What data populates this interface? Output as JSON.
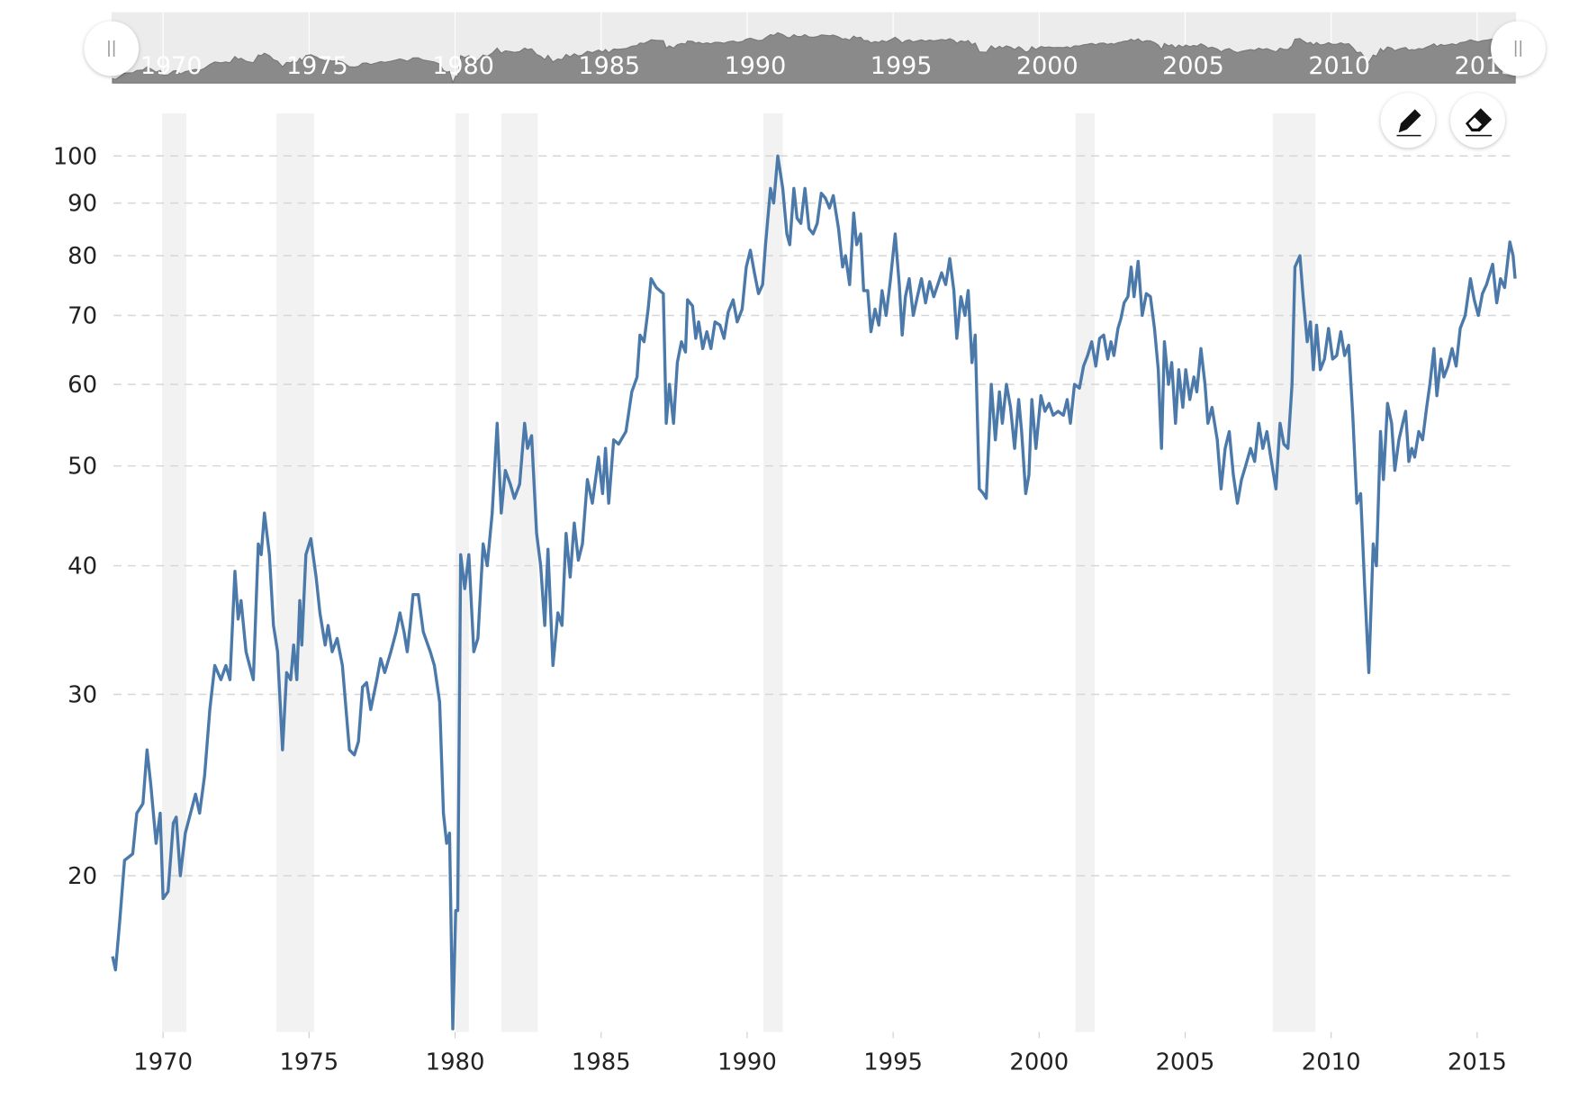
{
  "chart_data": {
    "type": "line",
    "log": true,
    "grid": true,
    "color": "#4a79aa",
    "xlim": [
      1968.3,
      2016.3
    ],
    "xticks": [
      1970,
      1975,
      1980,
      1985,
      1990,
      1995,
      2000,
      2005,
      2010,
      2015
    ],
    "ylim": [
      14.1,
      110
    ],
    "yticks": [
      20,
      30,
      40,
      50,
      60,
      70,
      80,
      90,
      100
    ],
    "recessions": [
      [
        1969.97,
        1970.8
      ],
      [
        1973.88,
        1975.17
      ],
      [
        1980.02,
        1980.47
      ],
      [
        1981.58,
        1982.83
      ],
      [
        1990.56,
        1991.22
      ],
      [
        2001.24,
        2001.9
      ],
      [
        2008.0,
        2009.46
      ]
    ],
    "x": [
      1968.27,
      1968.37,
      1968.51,
      1968.68,
      1968.96,
      1969.1,
      1969.31,
      1969.45,
      1969.58,
      1969.76,
      1969.9,
      1970,
      1970.17,
      1970.35,
      1970.45,
      1970.59,
      1970.76,
      1970.94,
      1971.11,
      1971.25,
      1971.42,
      1971.6,
      1971.77,
      1971.98,
      1972.15,
      1972.29,
      1972.46,
      1972.57,
      1972.67,
      1972.84,
      1973.09,
      1973.26,
      1973.36,
      1973.47,
      1973.64,
      1973.78,
      1973.92,
      1974.09,
      1974.23,
      1974.37,
      1974.47,
      1974.58,
      1974.68,
      1974.75,
      1974.89,
      1975.06,
      1975.24,
      1975.37,
      1975.55,
      1975.65,
      1975.79,
      1975.96,
      1976.14,
      1976.38,
      1976.55,
      1976.69,
      1976.83,
      1976.97,
      1977.11,
      1977.32,
      1977.45,
      1977.59,
      1977.8,
      1977.98,
      1978.11,
      1978.25,
      1978.36,
      1978.46,
      1978.56,
      1978.74,
      1978.91,
      1979.15,
      1979.29,
      1979.47,
      1979.6,
      1979.71,
      1979.81,
      1979.92,
      1980.02,
      1980.09,
      1980.19,
      1980.33,
      1980.47,
      1980.64,
      1980.78,
      1980.96,
      1981.1,
      1981.27,
      1981.44,
      1981.58,
      1981.72,
      1981.89,
      1982.03,
      1982.21,
      1982.38,
      1982.48,
      1982.62,
      1982.79,
      1982.93,
      1983.07,
      1983.18,
      1983.35,
      1983.52,
      1983.66,
      1983.8,
      1983.94,
      1984.08,
      1984.22,
      1984.36,
      1984.53,
      1984.7,
      1984.91,
      1985.05,
      1985.15,
      1985.26,
      1985.43,
      1985.6,
      1985.85,
      1986.05,
      1986.23,
      1986.33,
      1986.47,
      1986.61,
      1986.71,
      1986.89,
      1987.13,
      1987.23,
      1987.34,
      1987.48,
      1987.61,
      1987.75,
      1987.89,
      1987.96,
      1988.13,
      1988.24,
      1988.34,
      1988.48,
      1988.62,
      1988.76,
      1988.9,
      1989.07,
      1989.21,
      1989.35,
      1989.52,
      1989.66,
      1989.83,
      1989.97,
      1990.11,
      1990.25,
      1990.39,
      1990.53,
      1990.63,
      1990.8,
      1990.91,
      1991.05,
      1991.22,
      1991.36,
      1991.46,
      1991.6,
      1991.71,
      1991.84,
      1991.98,
      1992.12,
      1992.26,
      1992.4,
      1992.54,
      1992.68,
      1992.82,
      1992.95,
      1993.13,
      1993.27,
      1993.37,
      1993.51,
      1993.65,
      1993.75,
      1993.89,
      1993.99,
      1994.13,
      1994.24,
      1994.38,
      1994.51,
      1994.62,
      1994.76,
      1994.9,
      1995.07,
      1995.21,
      1995.31,
      1995.42,
      1995.55,
      1995.69,
      1995.83,
      1995.97,
      1996.11,
      1996.25,
      1996.39,
      1996.53,
      1996.66,
      1996.8,
      1996.94,
      1997.08,
      1997.18,
      1997.32,
      1997.46,
      1997.57,
      1997.7,
      1997.81,
      1997.95,
      1998.09,
      1998.19,
      1998.36,
      1998.5,
      1998.64,
      1998.74,
      1998.88,
      1999.02,
      1999.16,
      1999.3,
      1999.4,
      1999.54,
      1999.65,
      1999.75,
      1999.89,
      2000.06,
      2000.2,
      2000.34,
      2000.48,
      2000.65,
      2000.83,
      2000.96,
      2001.07,
      2001.21,
      2001.38,
      2001.52,
      2001.66,
      2001.8,
      2001.94,
      2002.07,
      2002.21,
      2002.35,
      2002.46,
      2002.56,
      2002.7,
      2002.8,
      2002.91,
      2003.04,
      2003.15,
      2003.25,
      2003.39,
      2003.53,
      2003.67,
      2003.81,
      2003.95,
      2004.08,
      2004.19,
      2004.29,
      2004.43,
      2004.54,
      2004.67,
      2004.78,
      2004.92,
      2005.02,
      2005.16,
      2005.3,
      2005.4,
      2005.54,
      2005.68,
      2005.78,
      2005.92,
      2006.1,
      2006.23,
      2006.37,
      2006.51,
      2006.65,
      2006.79,
      2006.93,
      2007.07,
      2007.24,
      2007.38,
      2007.52,
      2007.66,
      2007.8,
      2007.93,
      2008.11,
      2008.25,
      2008.38,
      2008.52,
      2008.66,
      2008.76,
      2008.93,
      2009.04,
      2009.18,
      2009.29,
      2009.39,
      2009.5,
      2009.63,
      2009.77,
      2009.91,
      2010.05,
      2010.19,
      2010.33,
      2010.46,
      2010.6,
      2010.74,
      2010.88,
      2011.01,
      2011.15,
      2011.29,
      2011.44,
      2011.55,
      2011.69,
      2011.79,
      2011.93,
      2012.07,
      2012.18,
      2012.32,
      2012.45,
      2012.55,
      2012.66,
      2012.76,
      2012.86,
      2013,
      2013.13,
      2013.27,
      2013.38,
      2013.52,
      2013.62,
      2013.76,
      2013.86,
      2014,
      2014.14,
      2014.28,
      2014.42,
      2014.59,
      2014.77,
      2014.9,
      2015.04,
      2015.18,
      2015.32,
      2015.53,
      2015.67,
      2015.8,
      2015.94,
      2016.12,
      2016.23,
      2016.3
    ],
    "values": [
      16.7,
      16.2,
      18,
      20.7,
      21,
      23,
      23.5,
      26.5,
      24.5,
      21.5,
      23,
      19,
      19.3,
      22.5,
      22.8,
      20,
      22,
      23,
      24,
      23,
      25,
      29,
      32,
      31,
      32,
      31,
      39.5,
      35.5,
      37,
      33,
      31,
      42,
      41,
      45,
      41,
      35,
      33,
      26.5,
      31.5,
      31,
      33.5,
      31,
      37,
      33.5,
      41,
      42.5,
      39,
      36,
      33.5,
      35,
      33,
      34,
      32,
      26.5,
      26.2,
      27,
      30.5,
      30.8,
      29,
      31,
      32.5,
      31.5,
      33,
      34.5,
      36,
      34.5,
      33,
      35,
      37.5,
      37.5,
      34.5,
      33,
      32,
      29.5,
      23,
      21.5,
      22,
      14.2,
      18.5,
      18.5,
      41,
      38,
      41,
      33,
      34,
      42,
      40,
      45,
      55,
      45,
      49.5,
      48,
      46.5,
      48,
      55,
      52,
      53.5,
      43,
      40,
      35,
      41.5,
      32,
      36,
      35,
      43,
      39,
      44,
      40.5,
      42,
      48.5,
      46,
      51,
      47,
      52,
      46,
      53,
      52.5,
      54,
      59,
      61,
      67,
      66,
      71,
      76,
      74.5,
      73.5,
      55,
      60,
      55,
      63,
      66,
      64.5,
      72.5,
      71.5,
      66.5,
      69,
      65,
      67.5,
      65,
      69,
      68.5,
      66.5,
      70.5,
      72.5,
      69,
      71,
      78,
      81,
      77,
      73.5,
      75,
      82,
      93,
      90,
      100,
      93,
      84,
      82,
      93,
      87,
      86,
      93,
      85,
      84,
      86,
      92,
      91,
      89,
      91.5,
      85,
      78,
      80,
      75,
      88,
      82,
      84,
      74,
      74,
      67.5,
      71,
      68.5,
      74,
      70,
      75.5,
      84,
      75,
      67,
      73,
      76,
      70,
      73,
      76,
      72,
      75.5,
      73,
      75,
      77,
      75,
      79.5,
      74,
      66.5,
      73,
      70,
      74,
      63,
      67,
      47.5,
      47,
      46.5,
      60,
      53,
      59,
      55,
      60,
      57,
      52,
      58,
      54,
      47,
      49,
      58,
      52,
      58.5,
      56.5,
      57.5,
      56,
      56.5,
      56,
      58,
      55,
      60,
      59.5,
      62.5,
      64,
      66,
      62.5,
      66.5,
      67,
      63.5,
      66,
      64,
      68,
      69.5,
      72,
      73,
      78,
      73,
      79,
      70,
      73.5,
      73,
      68,
      62,
      52,
      66,
      60,
      63,
      55,
      62,
      57,
      62,
      58,
      61,
      59,
      65,
      60,
      55,
      57,
      53,
      47.5,
      52,
      54,
      49,
      46,
      48.5,
      50,
      52,
      50.5,
      55,
      52,
      54,
      51,
      47.5,
      55,
      52.5,
      52,
      60,
      78,
      80,
      73,
      66,
      69,
      62,
      68.5,
      62,
      63.5,
      68,
      63.5,
      64,
      67.5,
      64,
      65.5,
      56,
      46,
      47,
      38,
      31.5,
      42,
      40,
      54,
      48.5,
      57.5,
      55,
      49.5,
      53,
      55,
      56.5,
      50.5,
      52,
      51,
      54,
      53,
      57,
      60,
      65,
      58.5,
      63.5,
      61,
      62.5,
      65,
      62.5,
      68,
      70,
      76,
      72.5,
      70,
      73.5,
      75,
      78.5,
      72,
      76,
      74.5,
      82.5,
      80,
      76
    ]
  }
}
